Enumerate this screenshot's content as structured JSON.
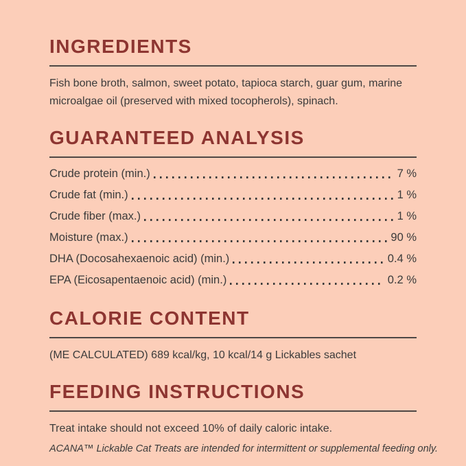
{
  "theme": {
    "bg": "#fcceb9",
    "heading": "#8d3531",
    "text": "#3b3b3b",
    "rule": "#4d4744"
  },
  "sections": {
    "ingredients": {
      "heading": "INGREDIENTS",
      "lines": [
        "Fish bone broth, salmon, sweet potato, tapioca starch, guar gum, marine",
        "microalgae oil (preserved with mixed tocopherols), spinach."
      ]
    },
    "analysis": {
      "heading": "GUARANTEED ANALYSIS",
      "rows": [
        {
          "label": "Crude protein (min.)",
          "value": "7 %"
        },
        {
          "label": "Crude fat (min.)",
          "value": "1 %"
        },
        {
          "label": "Crude fiber (max.)",
          "value": "1 %"
        },
        {
          "label": "Moisture (max.)",
          "value": "90 %"
        },
        {
          "label": "DHA (Docosahexaenoic acid) (min.)",
          "value": "0.4 %"
        },
        {
          "label": "EPA (Eicosapentaenoic acid) (min.)",
          "value": "0.2 %"
        }
      ]
    },
    "calories": {
      "heading": "CALORIE CONTENT",
      "text": "(ME CALCULATED) 689 kcal/kg, 10 kcal/14 g Lickables sachet"
    },
    "feeding": {
      "heading": "FEEDING INSTRUCTIONS",
      "text": "Treat intake should not exceed 10% of daily caloric intake.",
      "note": "ACANA™ Lickable Cat Treats are intended for intermittent or supplemental feeding only."
    }
  }
}
